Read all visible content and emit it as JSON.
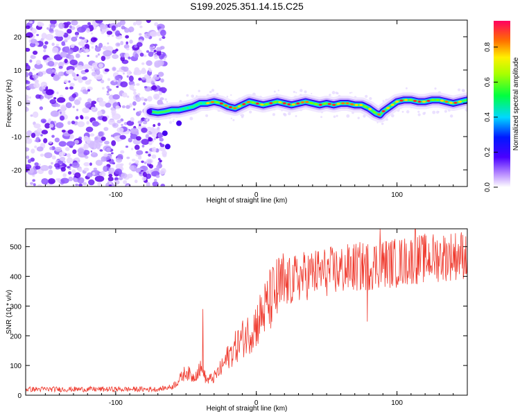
{
  "title": "S199.2025.351.14.15.C25",
  "chart_data": [
    {
      "type": "heatmap",
      "xlabel": "Height of straight line (km)",
      "ylabel": "Frequency (Hz)",
      "xlim": [
        -164,
        150
      ],
      "ylim": [
        -25,
        25
      ],
      "xticks": [
        -100,
        0,
        100
      ],
      "yticks": [
        -20,
        -10,
        0,
        10,
        20
      ],
      "noise_region_x": [
        -164,
        -65
      ],
      "ridge": {
        "x": [
          -75,
          -70,
          -65,
          -60,
          -55,
          -50,
          -45,
          -40,
          -35,
          -30,
          -25,
          -20,
          -15,
          -10,
          -5,
          0,
          5,
          10,
          15,
          20,
          25,
          30,
          35,
          40,
          45,
          50,
          55,
          60,
          65,
          70,
          75,
          80,
          85,
          88,
          90,
          95,
          100,
          105,
          110,
          115,
          120,
          125,
          130,
          135,
          140,
          145,
          150
        ],
        "freq": [
          -2.5,
          -2.8,
          -2.5,
          -2.0,
          -2.0,
          -1.5,
          -1.0,
          0,
          0,
          0.5,
          0,
          -1.0,
          -1.5,
          -0.5,
          0.5,
          0,
          -0.5,
          0,
          0.5,
          0,
          -0.5,
          0,
          0.5,
          0,
          -0.5,
          0,
          -0.5,
          0,
          0,
          -0.5,
          -0.5,
          -1.5,
          -3.0,
          -3.5,
          -2.5,
          -1.0,
          0.5,
          1.0,
          1.0,
          0.5,
          0.5,
          1.0,
          1.0,
          0.5,
          0,
          0.5,
          1.0
        ]
      },
      "colorbar": {
        "label": "Normalized spectral amplitude",
        "range": [
          0,
          0.95
        ],
        "ticks": [
          "0.0",
          "0.2",
          "0.4",
          "0.6",
          "0.8"
        ]
      }
    },
    {
      "type": "line",
      "xlabel": "Height of straight line (km)",
      "ylabel": "SNR (10 * v/v)",
      "xlim": [
        -164,
        150
      ],
      "ylim": [
        0,
        560
      ],
      "xticks": [
        -100,
        0,
        100
      ],
      "yticks": [
        0,
        100,
        200,
        300,
        400,
        500
      ],
      "color": "#ef3a2e",
      "trend": {
        "x": [
          -164,
          -70,
          -60,
          -55,
          -50,
          -45,
          -40,
          -35,
          -30,
          -25,
          -20,
          -15,
          -10,
          -5,
          0,
          5,
          10,
          15,
          20,
          30,
          40,
          50,
          60,
          70,
          80,
          90,
          100,
          110,
          120,
          130,
          140,
          150
        ],
        "snr": [
          20,
          20,
          28,
          50,
          80,
          60,
          90,
          50,
          60,
          90,
          130,
          160,
          190,
          210,
          240,
          280,
          320,
          350,
          370,
          395,
          410,
          415,
          420,
          430,
          435,
          445,
          445,
          455,
          460,
          465,
          470,
          475
        ]
      },
      "peaks": [
        {
          "x": -38,
          "snr": 290
        },
        {
          "x": 88,
          "snr": 560
        },
        {
          "x": 113,
          "snr": 560
        },
        {
          "x": 79,
          "snr": 248
        }
      ]
    }
  ]
}
